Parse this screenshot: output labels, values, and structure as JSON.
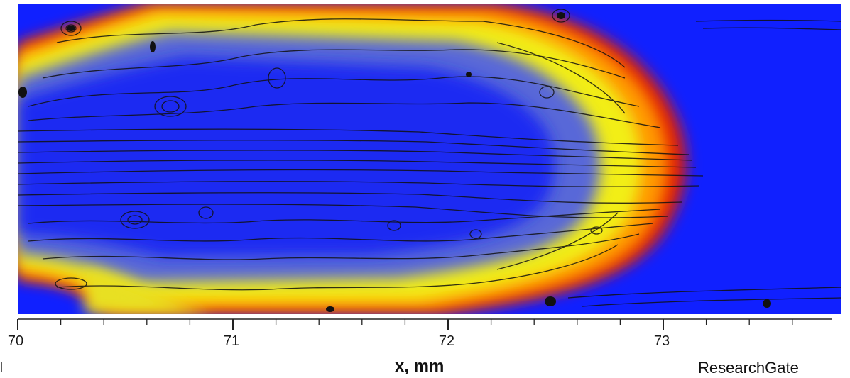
{
  "chart_data": {
    "type": "heatmap",
    "xlabel": "x, mm",
    "xlim": [
      70,
      73.8
    ],
    "x_ticks": [
      70,
      71,
      72,
      73
    ],
    "x_minor_step": 0.2,
    "grid": false,
    "colormap": [
      "#1020ff",
      "#f4f000",
      "#ff9a00",
      "#e81800",
      "#1020ff"
    ],
    "front": {
      "nose_x": 73.1,
      "rear_x": 70.6
    },
    "overlay": "streamlines"
  },
  "axis": {
    "tick_labels": [
      "70",
      "71",
      "72",
      "73"
    ],
    "x_label": "x, mm"
  },
  "watermark": "ResearchGate",
  "left_mark": "l",
  "colors": {
    "background": "#1020ff",
    "stream": "#111111",
    "axis": "#222222"
  }
}
